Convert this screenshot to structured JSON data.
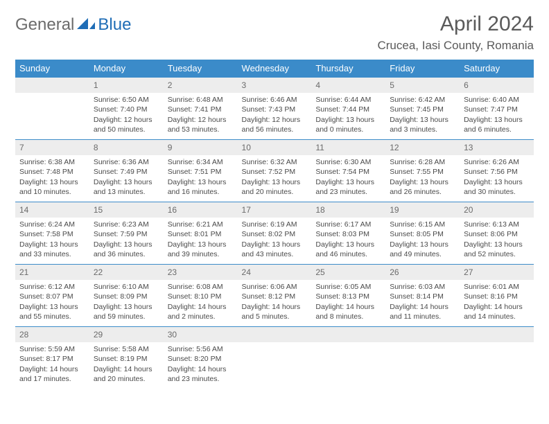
{
  "brand": {
    "part1": "General",
    "part2": "Blue"
  },
  "title": {
    "month": "April 2024",
    "location": "Crucea, Iasi County, Romania"
  },
  "colors": {
    "header_bg": "#3b8bc9",
    "daynum_bg": "#ededed",
    "text": "#5a5a5a",
    "rule": "#3b8bc9"
  },
  "weekdays": [
    "Sunday",
    "Monday",
    "Tuesday",
    "Wednesday",
    "Thursday",
    "Friday",
    "Saturday"
  ],
  "weeks": [
    [
      null,
      {
        "n": "1",
        "sr": "Sunrise: 6:50 AM",
        "ss": "Sunset: 7:40 PM",
        "d1": "Daylight: 12 hours",
        "d2": "and 50 minutes."
      },
      {
        "n": "2",
        "sr": "Sunrise: 6:48 AM",
        "ss": "Sunset: 7:41 PM",
        "d1": "Daylight: 12 hours",
        "d2": "and 53 minutes."
      },
      {
        "n": "3",
        "sr": "Sunrise: 6:46 AM",
        "ss": "Sunset: 7:43 PM",
        "d1": "Daylight: 12 hours",
        "d2": "and 56 minutes."
      },
      {
        "n": "4",
        "sr": "Sunrise: 6:44 AM",
        "ss": "Sunset: 7:44 PM",
        "d1": "Daylight: 13 hours",
        "d2": "and 0 minutes."
      },
      {
        "n": "5",
        "sr": "Sunrise: 6:42 AM",
        "ss": "Sunset: 7:45 PM",
        "d1": "Daylight: 13 hours",
        "d2": "and 3 minutes."
      },
      {
        "n": "6",
        "sr": "Sunrise: 6:40 AM",
        "ss": "Sunset: 7:47 PM",
        "d1": "Daylight: 13 hours",
        "d2": "and 6 minutes."
      }
    ],
    [
      {
        "n": "7",
        "sr": "Sunrise: 6:38 AM",
        "ss": "Sunset: 7:48 PM",
        "d1": "Daylight: 13 hours",
        "d2": "and 10 minutes."
      },
      {
        "n": "8",
        "sr": "Sunrise: 6:36 AM",
        "ss": "Sunset: 7:49 PM",
        "d1": "Daylight: 13 hours",
        "d2": "and 13 minutes."
      },
      {
        "n": "9",
        "sr": "Sunrise: 6:34 AM",
        "ss": "Sunset: 7:51 PM",
        "d1": "Daylight: 13 hours",
        "d2": "and 16 minutes."
      },
      {
        "n": "10",
        "sr": "Sunrise: 6:32 AM",
        "ss": "Sunset: 7:52 PM",
        "d1": "Daylight: 13 hours",
        "d2": "and 20 minutes."
      },
      {
        "n": "11",
        "sr": "Sunrise: 6:30 AM",
        "ss": "Sunset: 7:54 PM",
        "d1": "Daylight: 13 hours",
        "d2": "and 23 minutes."
      },
      {
        "n": "12",
        "sr": "Sunrise: 6:28 AM",
        "ss": "Sunset: 7:55 PM",
        "d1": "Daylight: 13 hours",
        "d2": "and 26 minutes."
      },
      {
        "n": "13",
        "sr": "Sunrise: 6:26 AM",
        "ss": "Sunset: 7:56 PM",
        "d1": "Daylight: 13 hours",
        "d2": "and 30 minutes."
      }
    ],
    [
      {
        "n": "14",
        "sr": "Sunrise: 6:24 AM",
        "ss": "Sunset: 7:58 PM",
        "d1": "Daylight: 13 hours",
        "d2": "and 33 minutes."
      },
      {
        "n": "15",
        "sr": "Sunrise: 6:23 AM",
        "ss": "Sunset: 7:59 PM",
        "d1": "Daylight: 13 hours",
        "d2": "and 36 minutes."
      },
      {
        "n": "16",
        "sr": "Sunrise: 6:21 AM",
        "ss": "Sunset: 8:01 PM",
        "d1": "Daylight: 13 hours",
        "d2": "and 39 minutes."
      },
      {
        "n": "17",
        "sr": "Sunrise: 6:19 AM",
        "ss": "Sunset: 8:02 PM",
        "d1": "Daylight: 13 hours",
        "d2": "and 43 minutes."
      },
      {
        "n": "18",
        "sr": "Sunrise: 6:17 AM",
        "ss": "Sunset: 8:03 PM",
        "d1": "Daylight: 13 hours",
        "d2": "and 46 minutes."
      },
      {
        "n": "19",
        "sr": "Sunrise: 6:15 AM",
        "ss": "Sunset: 8:05 PM",
        "d1": "Daylight: 13 hours",
        "d2": "and 49 minutes."
      },
      {
        "n": "20",
        "sr": "Sunrise: 6:13 AM",
        "ss": "Sunset: 8:06 PM",
        "d1": "Daylight: 13 hours",
        "d2": "and 52 minutes."
      }
    ],
    [
      {
        "n": "21",
        "sr": "Sunrise: 6:12 AM",
        "ss": "Sunset: 8:07 PM",
        "d1": "Daylight: 13 hours",
        "d2": "and 55 minutes."
      },
      {
        "n": "22",
        "sr": "Sunrise: 6:10 AM",
        "ss": "Sunset: 8:09 PM",
        "d1": "Daylight: 13 hours",
        "d2": "and 59 minutes."
      },
      {
        "n": "23",
        "sr": "Sunrise: 6:08 AM",
        "ss": "Sunset: 8:10 PM",
        "d1": "Daylight: 14 hours",
        "d2": "and 2 minutes."
      },
      {
        "n": "24",
        "sr": "Sunrise: 6:06 AM",
        "ss": "Sunset: 8:12 PM",
        "d1": "Daylight: 14 hours",
        "d2": "and 5 minutes."
      },
      {
        "n": "25",
        "sr": "Sunrise: 6:05 AM",
        "ss": "Sunset: 8:13 PM",
        "d1": "Daylight: 14 hours",
        "d2": "and 8 minutes."
      },
      {
        "n": "26",
        "sr": "Sunrise: 6:03 AM",
        "ss": "Sunset: 8:14 PM",
        "d1": "Daylight: 14 hours",
        "d2": "and 11 minutes."
      },
      {
        "n": "27",
        "sr": "Sunrise: 6:01 AM",
        "ss": "Sunset: 8:16 PM",
        "d1": "Daylight: 14 hours",
        "d2": "and 14 minutes."
      }
    ],
    [
      {
        "n": "28",
        "sr": "Sunrise: 5:59 AM",
        "ss": "Sunset: 8:17 PM",
        "d1": "Daylight: 14 hours",
        "d2": "and 17 minutes."
      },
      {
        "n": "29",
        "sr": "Sunrise: 5:58 AM",
        "ss": "Sunset: 8:19 PM",
        "d1": "Daylight: 14 hours",
        "d2": "and 20 minutes."
      },
      {
        "n": "30",
        "sr": "Sunrise: 5:56 AM",
        "ss": "Sunset: 8:20 PM",
        "d1": "Daylight: 14 hours",
        "d2": "and 23 minutes."
      },
      null,
      null,
      null,
      null
    ]
  ]
}
